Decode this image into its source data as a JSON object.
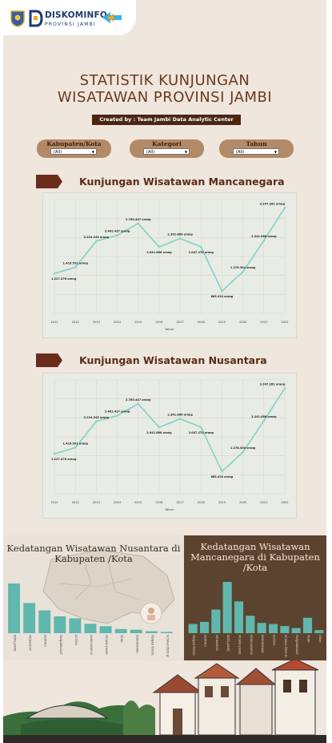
{
  "brand": {
    "name": "DISKOMINFO",
    "subtitle": "PROVINSI JAMBI",
    "logo_icon": "jambi-crest-icon"
  },
  "header": {
    "title_line1": "STATISTIK KUNJUNGAN",
    "title_line2": "WISATAWAN PROVINSI JAMBI",
    "credit": "Created by : Team Jambi Data Analytic Center"
  },
  "filters": [
    {
      "label": "Kabupaten/Kota",
      "value": "(All)"
    },
    {
      "label": "Kategori",
      "value": "(All)"
    },
    {
      "label": "Tahun",
      "value": "(All)"
    }
  ],
  "sections": {
    "mancanegara_title": "Kunjungan Wisatawan Mancanegara",
    "nusantara_title": "Kunjungan Wisatawan Nusantara",
    "nusantara_kab_title": "Kedatangan Wisatawan Nusantara di Kabupaten /Kota",
    "mancanegara_kab_title": "Kedatangan Wisatawan Mancanegara di Kabupaten /Kota"
  },
  "colors": {
    "line": "#7fd2c8",
    "bar": "#5fb7ad",
    "brown": "#6b2c1c",
    "dark_panel": "#5c4330"
  },
  "chart_data": [
    {
      "type": "line",
      "title": "Kunjungan Wisatawan Mancanegara",
      "xlabel": "Tahun",
      "x": [
        "2011",
        "2012",
        "2013",
        "2014",
        "2015",
        "2016",
        "2017",
        "2018",
        "2019",
        "2020",
        "2021",
        "2022"
      ],
      "values": [
        1227476,
        1416591,
        2224245,
        2402427,
        2765447,
        2041686,
        2301860,
        2047270,
        685424,
        1278304,
        2241086,
        3247281
      ],
      "data_labels": [
        "1.227.476 orang",
        "1.416.591 orang",
        "2.224.245 orang",
        "2.402.427 orang",
        "2.765.447 orang",
        "2.041.686 orang",
        "2.301.860 orang",
        "2.047.270 orang",
        "685.424 orang",
        "1.278.304 orang",
        "2.241.086 orang",
        "3.247.281 orang"
      ],
      "ylim": [
        0,
        3500000
      ]
    },
    {
      "type": "line",
      "title": "Kunjungan Wisatawan Nusantara",
      "xlabel": "Tahun",
      "x": [
        "2011",
        "2012",
        "2013",
        "2014",
        "2015",
        "2016",
        "2017",
        "2018",
        "2019",
        "2020",
        "2021",
        "2022"
      ],
      "values": [
        1227476,
        1416591,
        2224245,
        2402427,
        2765447,
        2041686,
        2301860,
        2047270,
        685424,
        1278304,
        2241086,
        3247281
      ],
      "data_labels": [
        "1.227.476 orang",
        "1.416.591 orang",
        "2.224.245 orang",
        "2.402.427 orang",
        "2.765.447 orang",
        "2.041.686 orang",
        "2.301.860 orang",
        "2.047.270 orang",
        "685.424 orang",
        "1.278.304 orang",
        "2.241.086 orang",
        "3.247.281 orang"
      ],
      "ylim": [
        0,
        3500000
      ]
    },
    {
      "type": "bar",
      "title": "Kedatangan Wisatawan Nusantara di Kabupaten /Kota",
      "categories": [
        "KOTA JAMBI",
        "MERANGIN",
        "KERINCI",
        "TANJABBARAT",
        "BUNGO",
        "SAROLANGUN",
        "MUARO JAMBI",
        "TEBO",
        "BATANGHARI",
        "TANJAB TIMUR",
        "SUNGAI PENUH"
      ],
      "values": [
        1135000,
        690000,
        520000,
        385000,
        340000,
        215000,
        160000,
        95000,
        80000,
        45000,
        30000
      ]
    },
    {
      "type": "bar",
      "title": "Kedatangan Wisatawan Mancanegara di Kabupaten /Kota",
      "categories": [
        "TANJAB TIMUR",
        "KERINCI",
        "MERANGIN",
        "KOTA JAMBI",
        "MUARO JAMBI",
        "SAROLANGUN",
        "BATANGHARI",
        "BUNGO",
        "SUNGAI PENUH",
        "TANJABBARAT",
        "TEBO",
        "Other"
      ],
      "values": [
        900,
        1100,
        2300,
        5000,
        3100,
        1700,
        1000,
        900,
        700,
        500,
        1500,
        300
      ]
    }
  ]
}
